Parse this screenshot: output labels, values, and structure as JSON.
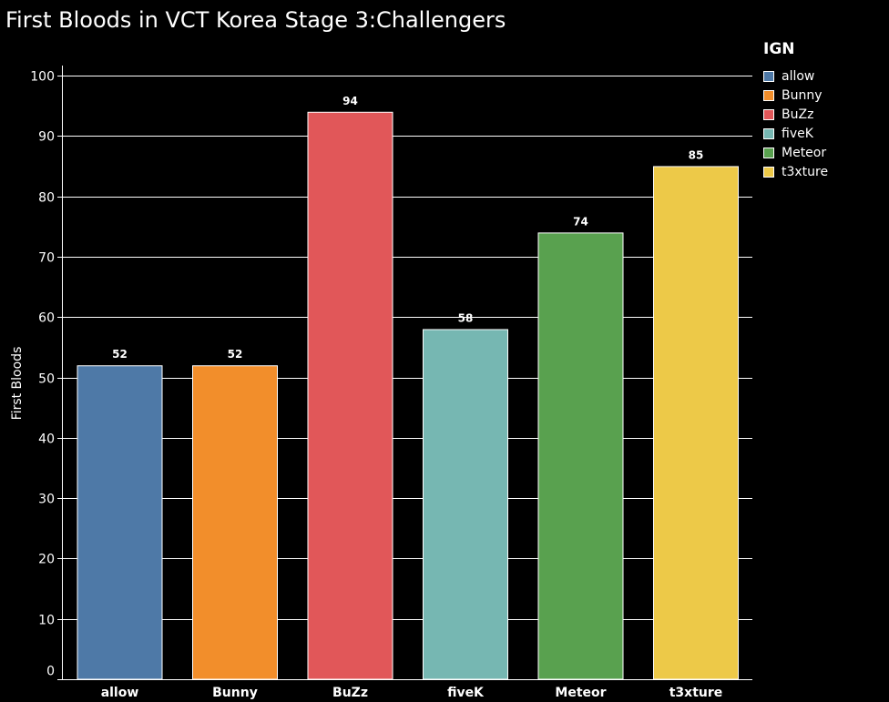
{
  "chart_data": {
    "type": "bar",
    "title": "First Bloods in VCT Korea Stage 3:Challengers",
    "xlabel": "",
    "ylabel": "First Bloods",
    "ylim": [
      0,
      100
    ],
    "yticks": [
      0,
      10,
      20,
      30,
      40,
      50,
      60,
      70,
      80,
      90,
      100
    ],
    "categories": [
      "allow",
      "Bunny",
      "BuZz",
      "fiveK",
      "Meteor",
      "t3xture"
    ],
    "values": [
      52,
      52,
      94,
      58,
      74,
      85
    ],
    "colors": [
      "#4e79a7",
      "#f28e2b",
      "#e15759",
      "#76b7b2",
      "#59a14f",
      "#edc948"
    ],
    "grid": true,
    "background": "#000000",
    "legend": {
      "title": "IGN",
      "placement": "top-right",
      "entries": [
        "allow",
        "Bunny",
        "BuZz",
        "fiveK",
        "Meteor",
        "t3xture"
      ]
    }
  }
}
